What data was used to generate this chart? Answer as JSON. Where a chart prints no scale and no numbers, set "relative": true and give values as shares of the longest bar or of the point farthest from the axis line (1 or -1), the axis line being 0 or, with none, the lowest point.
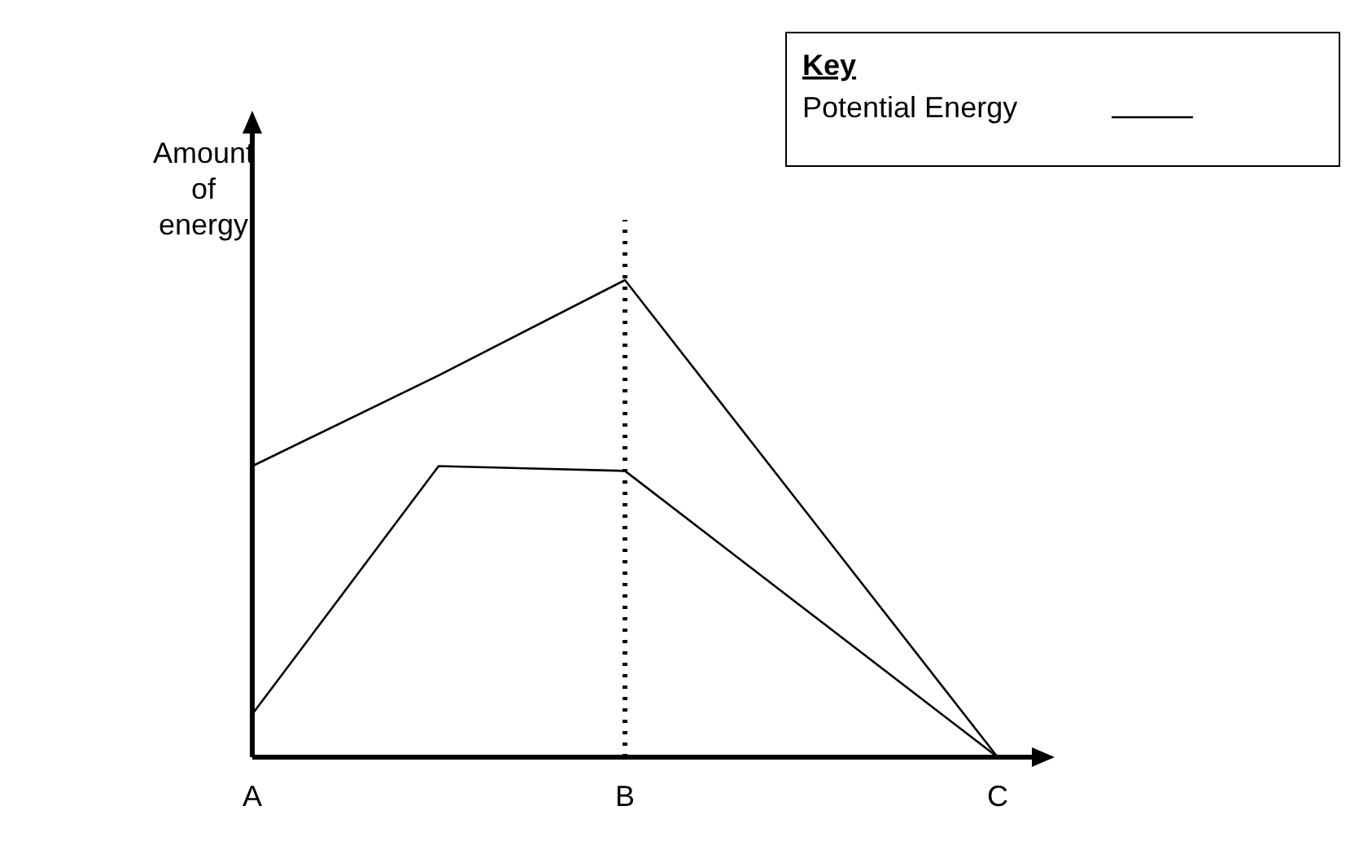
{
  "chart_data": {
    "type": "line",
    "relative": true,
    "ylabel": "Amount\nof\nenergy",
    "legend_title": "Key",
    "legend": "top right",
    "categories": [
      "A",
      null,
      "B",
      null,
      "C"
    ],
    "series": [
      {
        "name": "Potential Energy",
        "color": "#000000",
        "values": [
          0.61,
          0.8,
          1,
          0.5,
          0
        ]
      },
      {
        "color": "#000000",
        "values": [
          0.09,
          0.61,
          0.6,
          0.3,
          0
        ]
      }
    ],
    "ref_lines": [
      {
        "axis": "x",
        "value": "B",
        "line_style": "dotted",
        "color": "#000000"
      }
    ],
    "marker": "none",
    "line_style": "solid"
  }
}
